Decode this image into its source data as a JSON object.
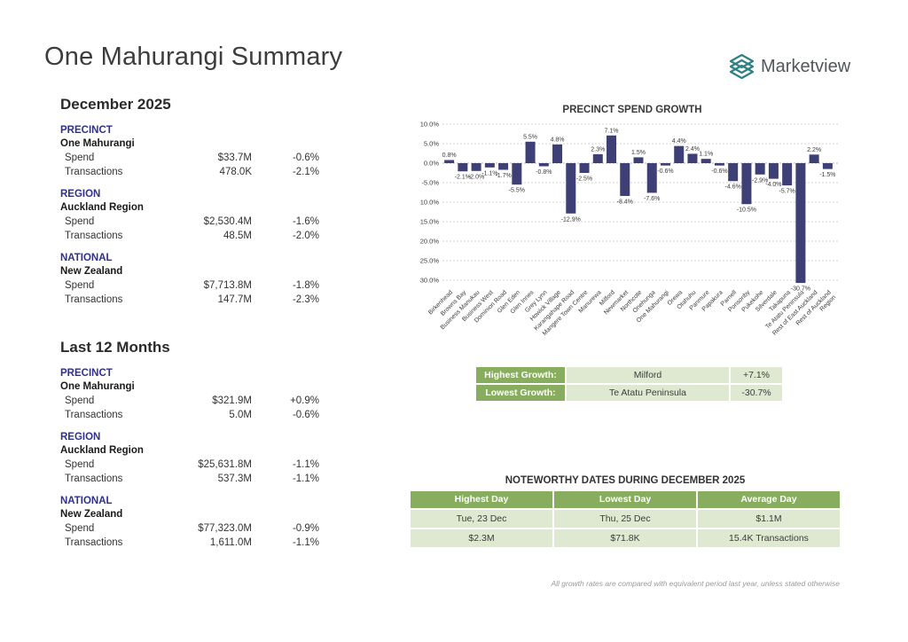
{
  "page": {
    "title": "One Mahurangi Summary",
    "brand": {
      "name": "Marketview",
      "icon": "layers-diamond-icon",
      "accent_color": "#2e8084"
    },
    "footnote": "All growth rates are compared with equivalent period last year, unless stated otherwise"
  },
  "summary_sections": [
    {
      "heading": "December 2025",
      "groups": [
        {
          "category": "PRECINCT",
          "name": "One Mahurangi",
          "rows": [
            {
              "label": "Spend",
              "value": "$33.7M",
              "change": "-0.6%"
            },
            {
              "label": "Transactions",
              "value": "478.0K",
              "change": "-2.1%"
            }
          ]
        },
        {
          "category": "REGION",
          "name": "Auckland Region",
          "rows": [
            {
              "label": "Spend",
              "value": "$2,530.4M",
              "change": "-1.6%"
            },
            {
              "label": "Transactions",
              "value": "48.5M",
              "change": "-2.0%"
            }
          ]
        },
        {
          "category": "NATIONAL",
          "name": "New Zealand",
          "rows": [
            {
              "label": "Spend",
              "value": "$7,713.8M",
              "change": "-1.8%"
            },
            {
              "label": "Transactions",
              "value": "147.7M",
              "change": "-2.3%"
            }
          ]
        }
      ]
    },
    {
      "heading": "Last 12 Months",
      "groups": [
        {
          "category": "PRECINCT",
          "name": "One Mahurangi",
          "rows": [
            {
              "label": "Spend",
              "value": "$321.9M",
              "change": "+0.9%"
            },
            {
              "label": "Transactions",
              "value": "5.0M",
              "change": "-0.6%"
            }
          ]
        },
        {
          "category": "REGION",
          "name": "Auckland Region",
          "rows": [
            {
              "label": "Spend",
              "value": "$25,631.8M",
              "change": "-1.1%"
            },
            {
              "label": "Transactions",
              "value": "537.3M",
              "change": "-1.1%"
            }
          ]
        },
        {
          "category": "NATIONAL",
          "name": "New Zealand",
          "rows": [
            {
              "label": "Spend",
              "value": "$77,323.0M",
              "change": "-0.9%"
            },
            {
              "label": "Transactions",
              "value": "1,611.0M",
              "change": "-1.1%"
            }
          ]
        }
      ]
    }
  ],
  "chart_data": {
    "type": "bar",
    "title": "PRECINCT SPEND GROWTH",
    "categories": [
      "Birkenhead",
      "Browns Bay",
      "Business Manukau",
      "Business West",
      "Dominion Road",
      "Glen Eden",
      "Glen Innes",
      "Grey Lynn",
      "Howick Village",
      "Karangahape Road",
      "Mangere Town Centre",
      "Manurewa",
      "Milford",
      "Newmarket",
      "Northcote",
      "Onehunga",
      "One Mahurangi",
      "Orewa",
      "Otahuhu",
      "Panmure",
      "Papakura",
      "Parnell",
      "Ponsonby",
      "Pukekohe",
      "Silverdale",
      "Takapuna",
      "Te Atatu Peninsula",
      "Rest of East Auckland",
      "Rest of Auckland Region"
    ],
    "values": [
      0.8,
      -2.1,
      -2.0,
      -1.1,
      -1.7,
      -5.5,
      5.5,
      -0.8,
      4.8,
      -12.9,
      -2.5,
      2.3,
      7.1,
      -8.4,
      1.5,
      -7.6,
      -0.6,
      4.4,
      2.4,
      1.1,
      -0.6,
      -4.6,
      -10.5,
      -2.9,
      -4.0,
      -5.7,
      -30.7,
      2.2,
      -1.5
    ],
    "value_suffix": "%",
    "yticks": [
      10,
      5,
      0,
      -5,
      -10,
      -15,
      -20,
      -25,
      -30
    ],
    "ylim": [
      -32,
      11
    ],
    "grid": "dashed",
    "legend": "none",
    "bar_color": "#3d3f75",
    "xlabel": "",
    "ylabel": ""
  },
  "growth_table": {
    "rows": [
      {
        "label": "Highest Growth:",
        "name": "Milford",
        "value": "+7.1%"
      },
      {
        "label": "Lowest Growth:",
        "name": "Te Atatu Peninsula",
        "value": "-30.7%"
      }
    ]
  },
  "noteworthy": {
    "title": "NOTEWORTHY DATES DURING DECEMBER 2025",
    "columns": [
      "Highest Day",
      "Lowest Day",
      "Average Day"
    ],
    "rows": [
      [
        "Tue, 23 Dec",
        "Thu, 25 Dec",
        "$1.1M"
      ],
      [
        "$2.3M",
        "$71.8K",
        "15.4K Transactions"
      ]
    ]
  },
  "colors": {
    "section_label": "#2f3190",
    "table_green": "#88ad5f",
    "table_light_green": "#dfe9d2",
    "bar": "#3d3f75",
    "brand_teal": "#2e8084"
  }
}
